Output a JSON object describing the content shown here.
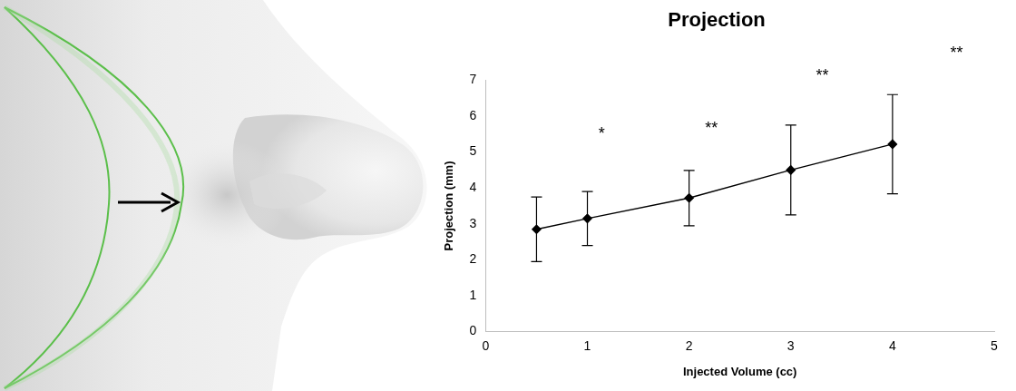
{
  "chart_data": {
    "type": "line",
    "title": "Projection",
    "x_label": "Injected Volume (cc)",
    "y_label": "Projection (mm)",
    "x": [
      0.5,
      1,
      2,
      3,
      4
    ],
    "values": [
      2.85,
      3.15,
      3.72,
      4.5,
      5.22
    ],
    "errors": [
      0.9,
      0.75,
      0.77,
      1.25,
      1.38
    ],
    "color": "#000000",
    "marker": "diamond",
    "line_style": "solid",
    "xlim": [
      0,
      5
    ],
    "xticks": [
      0,
      1,
      2,
      3,
      4,
      5
    ],
    "ylim": [
      0,
      7
    ],
    "yticks": [
      0,
      1,
      2,
      3,
      4,
      5,
      6,
      7
    ],
    "grid": false,
    "annotations": [
      {
        "text": "*",
        "x": 1.14,
        "y": 5.5
      },
      {
        "text": "**",
        "x": 2.22,
        "y": 5.65
      },
      {
        "text": "**",
        "x": 3.31,
        "y": 7.1
      },
      {
        "text": "**",
        "x": 4.63,
        "y": 7.75
      }
    ]
  }
}
